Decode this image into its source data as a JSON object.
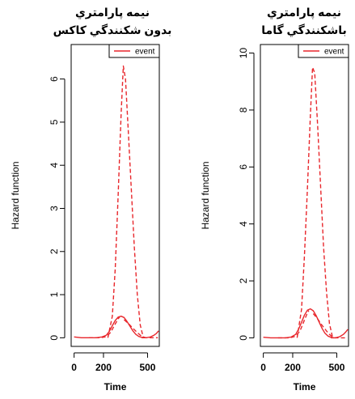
{
  "chart_data": [
    {
      "type": "line",
      "title_lines": [
        "نیمه پارامتري",
        "بدون شکنندگي کاکس"
      ],
      "xlabel": "Time",
      "ylabel": "Hazard function",
      "xlim": [
        -20,
        580
      ],
      "ylim": [
        -0.2,
        6.8
      ],
      "xticks": [
        0,
        200,
        500
      ],
      "xtick_labels": [
        "0",
        "200",
        "500"
      ],
      "yticks": [
        0,
        1,
        2,
        3,
        4,
        5,
        6
      ],
      "ytick_labels": [
        "0",
        "1",
        "2",
        "3",
        "4",
        "5",
        "6"
      ],
      "grid": false,
      "legend": {
        "position": "top-right",
        "entries": [
          "event"
        ]
      },
      "series": [
        {
          "name": "event",
          "style": "solid",
          "color": "#e8262b",
          "x": [
            0,
            50,
            100,
            150,
            190,
            220,
            240,
            260,
            280,
            300,
            320,
            340,
            360,
            380,
            400,
            420,
            440,
            460,
            480
          ],
          "y": [
            0.02,
            0.0,
            0.0,
            0.0,
            0.02,
            0.06,
            0.15,
            0.28,
            0.4,
            0.48,
            0.5,
            0.47,
            0.38,
            0.27,
            0.16,
            0.08,
            0.03,
            0.01,
            0.0
          ]
        },
        {
          "style": "dashed",
          "color": "#e8262b",
          "x": [
            230,
            260,
            280,
            300,
            320,
            335,
            350,
            370,
            390,
            410,
            430,
            450,
            470,
            480
          ],
          "y": [
            0.0,
            0.5,
            1.6,
            3.3,
            5.2,
            6.3,
            6.0,
            4.7,
            3.4,
            2.1,
            1.0,
            0.3,
            0.02,
            0.0
          ]
        },
        {
          "style": "dashed",
          "color": "#e8262b",
          "x": [
            100,
            180,
            210,
            230,
            250,
            270,
            290,
            300,
            310
          ],
          "y": [
            0.0,
            0.0,
            0.02,
            0.06,
            0.13,
            0.26,
            0.38,
            0.44,
            0.48
          ]
        },
        {
          "style": "dashed",
          "color": "#e8262b",
          "x": [
            340,
            370,
            400,
            430,
            450,
            470,
            490,
            510,
            540,
            570
          ],
          "y": [
            0.42,
            0.33,
            0.22,
            0.12,
            0.06,
            0.02,
            0.0,
            0.0,
            0.0,
            0.0
          ]
        },
        {
          "style": "solid",
          "color": "#e8262b",
          "x": [
            460,
            490,
            520,
            545,
            560,
            575
          ],
          "y": [
            0.0,
            0.0,
            0.02,
            0.06,
            0.1,
            0.16
          ]
        }
      ]
    },
    {
      "type": "line",
      "title_lines": [
        "نیمه پارامتري",
        "باشکنندگي گاما"
      ],
      "xlabel": "Time",
      "ylabel": "Hazard function",
      "xlim": [
        -20,
        580
      ],
      "ylim": [
        -0.3,
        10.3
      ],
      "xticks": [
        0,
        200,
        500
      ],
      "xtick_labels": [
        "0",
        "200",
        "500"
      ],
      "yticks": [
        0,
        2,
        4,
        6,
        8,
        10
      ],
      "ytick_labels": [
        "0",
        "2",
        "4",
        "6",
        "8",
        "10"
      ],
      "grid": false,
      "legend": {
        "position": "top-right",
        "entries": [
          "event"
        ]
      },
      "series": [
        {
          "name": "event",
          "style": "solid",
          "color": "#e8262b",
          "x": [
            0,
            50,
            100,
            150,
            190,
            220,
            240,
            260,
            280,
            300,
            320,
            340,
            360,
            380,
            400,
            420,
            440,
            460,
            480
          ],
          "y": [
            0.02,
            0.0,
            0.0,
            0.0,
            0.03,
            0.12,
            0.3,
            0.55,
            0.8,
            0.97,
            1.02,
            0.95,
            0.78,
            0.55,
            0.33,
            0.16,
            0.06,
            0.02,
            0.0
          ]
        },
        {
          "style": "dashed",
          "color": "#e8262b",
          "x": [
            230,
            260,
            280,
            300,
            320,
            335,
            350,
            370,
            390,
            410,
            430,
            450,
            470,
            480
          ],
          "y": [
            0.0,
            1.0,
            2.9,
            5.2,
            7.8,
            9.5,
            9.3,
            7.4,
            5.3,
            3.2,
            1.6,
            0.5,
            0.05,
            0.0
          ]
        },
        {
          "style": "dashed",
          "color": "#e8262b",
          "x": [
            100,
            180,
            210,
            230,
            250,
            270,
            290,
            300,
            310
          ],
          "y": [
            0.0,
            0.0,
            0.04,
            0.12,
            0.25,
            0.5,
            0.75,
            0.88,
            0.96
          ]
        },
        {
          "style": "dashed",
          "color": "#e8262b",
          "x": [
            340,
            370,
            400,
            430,
            450,
            470,
            490,
            510,
            540,
            570
          ],
          "y": [
            0.85,
            0.66,
            0.44,
            0.24,
            0.12,
            0.04,
            0.0,
            0.0,
            0.0,
            0.0
          ]
        },
        {
          "style": "solid",
          "color": "#e8262b",
          "x": [
            460,
            490,
            520,
            545,
            560,
            575
          ],
          "y": [
            0.0,
            0.0,
            0.04,
            0.12,
            0.2,
            0.3
          ]
        }
      ]
    }
  ]
}
